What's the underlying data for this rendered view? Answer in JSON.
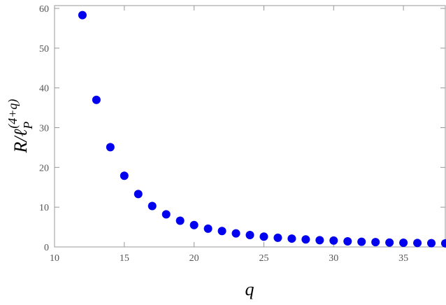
{
  "chart_data": {
    "type": "scatter",
    "x_label": "q",
    "y_label": {
      "base": "R/ℓ",
      "sub": "P",
      "sup": "(4+q)"
    },
    "color": "#0000ee",
    "x": [
      12,
      13,
      14,
      15,
      16,
      17,
      18,
      19,
      20,
      21,
      22,
      23,
      24,
      25,
      26,
      27,
      28,
      29,
      30,
      31,
      32,
      33,
      34,
      35,
      36,
      37,
      38
    ],
    "values": [
      58.3,
      37.0,
      25.1,
      17.9,
      13.3,
      10.3,
      8.2,
      6.6,
      5.5,
      4.6,
      4.0,
      3.4,
      3.0,
      2.6,
      2.3,
      2.1,
      1.9,
      1.7,
      1.6,
      1.4,
      1.3,
      1.2,
      1.1,
      1.05,
      1.0,
      0.95,
      0.9
    ],
    "xlim": [
      10,
      38
    ],
    "ylim": [
      0,
      60
    ],
    "xticks": [
      10,
      15,
      20,
      25,
      30,
      35
    ],
    "yticks": [
      0,
      10,
      20,
      30,
      40,
      50,
      60
    ]
  }
}
